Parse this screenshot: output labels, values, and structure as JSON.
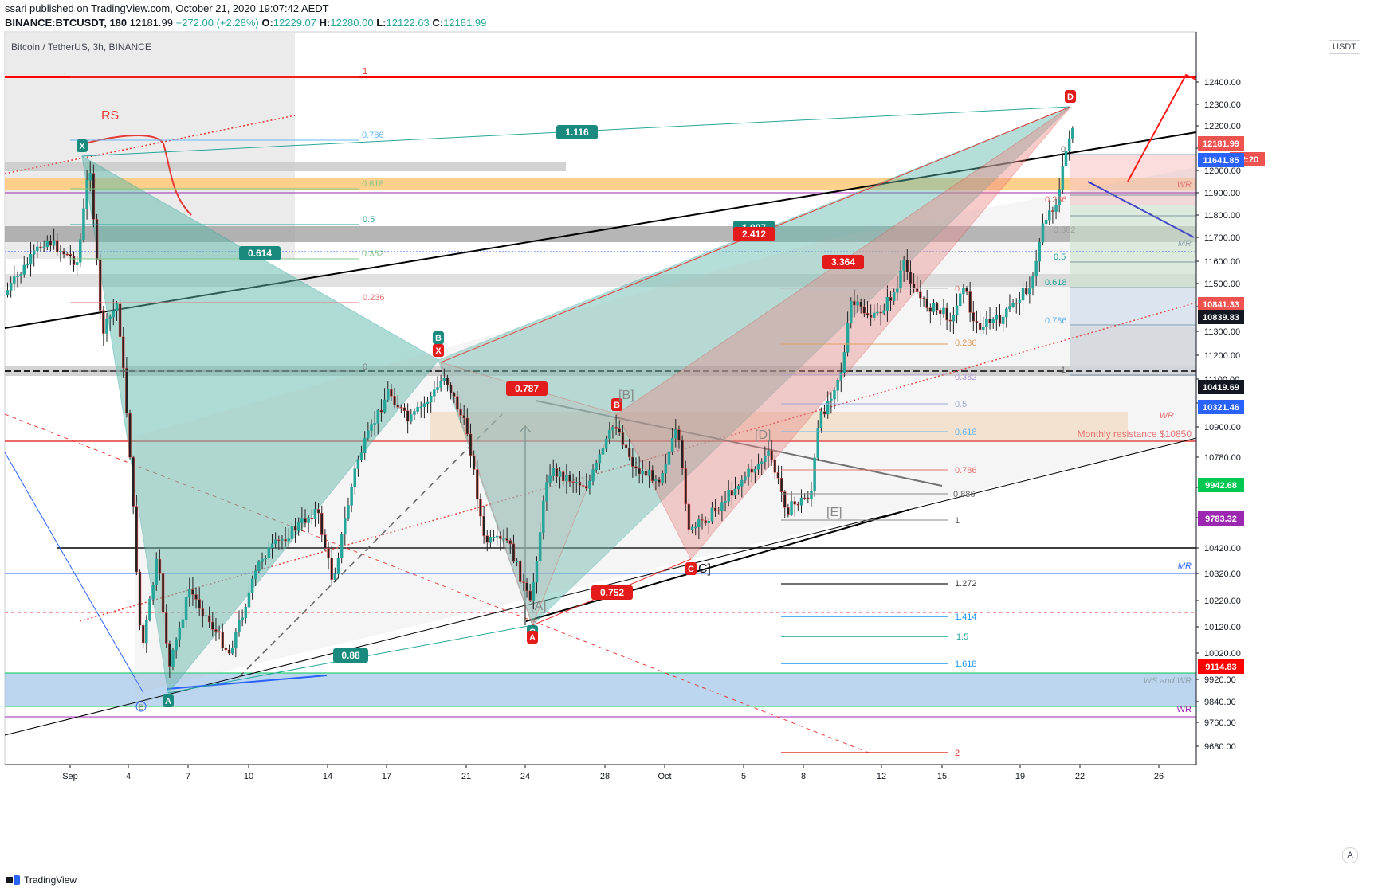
{
  "header": {
    "publish_line": "ssari published on TradingView.com, October 21, 2020 19:07:42 AEDT",
    "ticker": "BINANCE:BTCUSDT, 180",
    "last": "12181.99",
    "change": "+272.00 (+2.28%)",
    "o_label": "O:",
    "o": "12229.07",
    "h_label": "H:",
    "h": "12280.00",
    "l_label": "L:",
    "l": "12122.63",
    "c_label": "C:",
    "c": "12181.99"
  },
  "symbol_label": "Bitcoin / TetherUS, 3h, BINANCE",
  "unit_label": "USDT",
  "footer_brand": "TradingView",
  "auto_button": "A",
  "colors": {
    "up": "#26a69a",
    "down": "#ef5350",
    "teal_pattern": "#5fb8aa",
    "red_pattern": "#f08080",
    "resistance": "#ff0000",
    "support_zone": "#9fc5e8",
    "orange_zone": "#ffcc80",
    "black_line": "#000000",
    "blue_line": "#2962ff",
    "purple": "#9c27b0"
  },
  "chart_data": {
    "type": "candlestick",
    "symbol": "BTCUSDT",
    "timeframe": "3h",
    "x_tick_labels": [
      "Sep",
      "4",
      "7",
      "10",
      "14",
      "17",
      "21",
      "24",
      "28",
      "Oct",
      "5",
      "8",
      "12",
      "15",
      "19",
      "22",
      "26"
    ],
    "y_ticks": [
      12400,
      12300,
      12200,
      12100,
      12000,
      11900,
      11800,
      11700,
      11600,
      11500,
      11400,
      11300,
      11200,
      11100,
      11000,
      10900,
      10780,
      10660,
      10540,
      10420,
      10320,
      10220,
      10120,
      10020,
      9920,
      9840,
      9760,
      9680
    ],
    "y_tick_labels": [
      "12400.00",
      "12300.00",
      "12200.00",
      "12100.00",
      "12000.00",
      "11900.00",
      "11800.00",
      "11700.00",
      "11600.00",
      "11500.00",
      "11400.00",
      "11300.00",
      "11200.00",
      "11100.00",
      "11000.00",
      "10900.00",
      "10780.00",
      "10660.00",
      "10540.00",
      "10420.00",
      "10320.00",
      "10220.00",
      "10120.00",
      "10020.00",
      "9920.00",
      "9840.00",
      "9760.00",
      "9680.00"
    ],
    "price_tags": [
      {
        "label": "12181.99",
        "color": "#ef5350"
      },
      {
        "label": "52:20",
        "color": "#ef5350"
      },
      {
        "label": "11641.85",
        "color": "#2962ff"
      },
      {
        "label": "10841.33",
        "color": "#ef5350"
      },
      {
        "label": "10839.83",
        "color": "#131722"
      },
      {
        "label": "10419.69",
        "color": "#131722"
      },
      {
        "label": "10321.46",
        "color": "#2962ff"
      },
      {
        "label": "9942.68",
        "color": "#00c853"
      },
      {
        "label": "9783.32",
        "color": "#9c27b0"
      },
      {
        "label": "9114.83",
        "color": "#ff0000"
      }
    ],
    "pattern_labels": [
      "X",
      "A",
      "B",
      "C",
      "D",
      "X",
      "A",
      "B",
      "C"
    ],
    "ratio_labels": [
      "1.116",
      "0.614",
      "0.88",
      "2.412",
      "3.364",
      "0.787",
      "0.752",
      "1.097"
    ],
    "fib_left": [
      "1",
      "0.786",
      "0.618",
      "0.5",
      "0.382",
      "0.236",
      "0"
    ],
    "fib_mid": [
      "0",
      "0.5",
      "0.618",
      "0.786",
      "0.886",
      "1",
      "1.272",
      "1.414",
      "1.5",
      "1.618",
      "2",
      "0.382",
      "0.236"
    ],
    "fib_right": [
      "0",
      "0.5",
      "0.618",
      "0.786",
      "1",
      "0.382",
      "0.236"
    ],
    "wave_labels": [
      "[A]",
      "[B]",
      "C]",
      "[D]",
      "[E]",
      "E"
    ],
    "annotations": [
      "RS",
      "WR",
      "MR",
      "MR",
      "WR",
      "Monthly resistance $10850",
      "MR",
      "WS and WR",
      "WR"
    ]
  }
}
